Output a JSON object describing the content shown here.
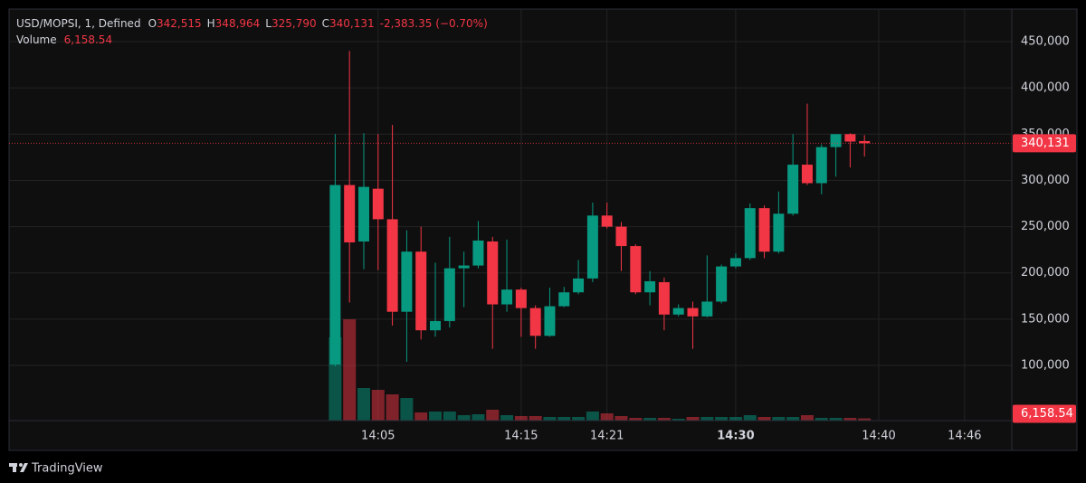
{
  "chart_data": {
    "type": "candlestick",
    "legend": {
      "symbol": "USD/MOPSI, 1, Defined",
      "fields": [
        {
          "key": "O",
          "label": "342,515"
        },
        {
          "key": "H",
          "label": "348,964"
        },
        {
          "key": "L",
          "label": "325,790"
        },
        {
          "key": "C",
          "label": "340,131"
        }
      ],
      "change": "-2,383.35 (−0.70%)",
      "volume_key": "Volume",
      "volume_label": "6,158.54"
    },
    "x": [
      2,
      3,
      4,
      5,
      6,
      7,
      8,
      9,
      10,
      11,
      12,
      13,
      14,
      15,
      16,
      17,
      18,
      19,
      20,
      21,
      22,
      23,
      24,
      25,
      26,
      27,
      28,
      29,
      30,
      31,
      32,
      33,
      34,
      35,
      36,
      37,
      38,
      39
    ],
    "open": [
      101000,
      295000,
      234000,
      291000,
      258000,
      158000,
      223000,
      138000,
      148000,
      205000,
      208000,
      234000,
      166000,
      182000,
      162000,
      132000,
      164000,
      179000,
      194000,
      262000,
      250000,
      229000,
      179000,
      190000,
      155000,
      162000,
      153000,
      169000,
      207000,
      216000,
      270000,
      223000,
      264000,
      317000,
      297000,
      336000,
      350000,
      342515
    ],
    "high": [
      350000,
      440000,
      351000,
      350000,
      360000,
      246000,
      250000,
      211000,
      239000,
      223000,
      256000,
      239000,
      236000,
      184000,
      165000,
      184000,
      185000,
      214000,
      276000,
      276000,
      255000,
      231000,
      202000,
      195000,
      166000,
      169000,
      219000,
      209000,
      221000,
      275000,
      273000,
      288000,
      350000,
      383000,
      339000,
      350000,
      351000,
      348964
    ],
    "low": [
      99000,
      168000,
      204000,
      203000,
      143000,
      104000,
      128000,
      131000,
      141000,
      163000,
      205000,
      118000,
      158000,
      131000,
      118000,
      131000,
      163000,
      177000,
      190000,
      248000,
      202000,
      177000,
      165000,
      138000,
      153000,
      118000,
      152000,
      167000,
      205000,
      214000,
      216000,
      221000,
      262000,
      295000,
      285000,
      304000,
      314000,
      325790
    ],
    "close": [
      295000,
      233000,
      293000,
      258000,
      158000,
      223000,
      138000,
      148000,
      205000,
      208000,
      235000,
      166000,
      182000,
      162000,
      132000,
      164000,
      179000,
      194000,
      262000,
      250000,
      229000,
      179000,
      191000,
      155000,
      162000,
      153000,
      169000,
      207000,
      216000,
      270000,
      223000,
      264000,
      317000,
      297000,
      336000,
      350000,
      342000,
      340131
    ],
    "volume": [
      230000,
      280000,
      90000,
      85000,
      72500,
      62500,
      22500,
      25000,
      25000,
      15000,
      17500,
      30000,
      15000,
      12500,
      12500,
      10000,
      10000,
      10000,
      25000,
      20000,
      12500,
      7500,
      7500,
      7500,
      5000,
      10000,
      10000,
      10000,
      10000,
      15000,
      10000,
      10000,
      10000,
      15000,
      7500,
      7500,
      7500,
      6158.54
    ],
    "up_color": "#089981",
    "down_color": "#f23645",
    "xlim": [
      -20.8,
      49.3
    ],
    "xticks": [
      {
        "value": 5,
        "label": "14:05"
      },
      {
        "value": 15,
        "label": "14:15"
      },
      {
        "value": 21,
        "label": "14:21"
      },
      {
        "value": 30,
        "label": "14:30"
      },
      {
        "value": 40,
        "label": "14:40"
      },
      {
        "value": 46,
        "label": "14:46"
      }
    ],
    "ylim": [
      40400,
      485200
    ],
    "yticks": [
      {
        "value": 100000,
        "label": "100,000"
      },
      {
        "value": 150000,
        "label": "150,000"
      },
      {
        "value": 200000,
        "label": "200,000"
      },
      {
        "value": 250000,
        "label": "250,000"
      },
      {
        "value": 300000,
        "label": "300,000"
      },
      {
        "value": 350000,
        "label": "350,000"
      },
      {
        "value": 400000,
        "label": "400,000"
      },
      {
        "value": 450000,
        "label": "450,000"
      }
    ],
    "volume_lim": [
      0,
      280000
    ],
    "grid": true,
    "branding": "TradingView"
  }
}
